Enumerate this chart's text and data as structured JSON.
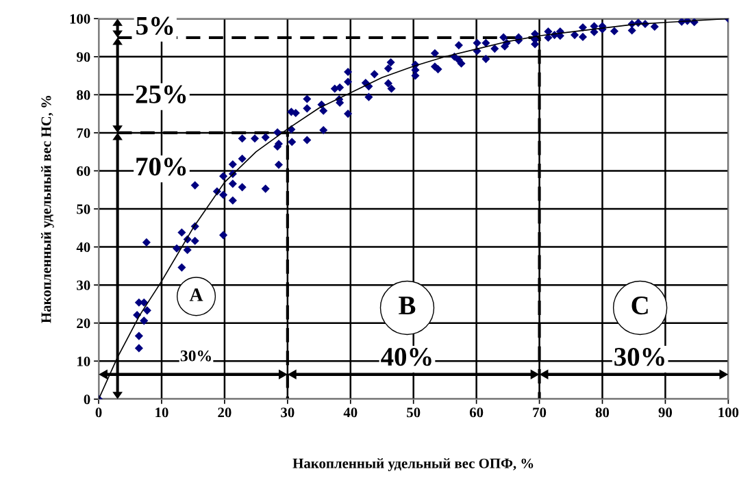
{
  "chart_data": {
    "type": "scatter",
    "xlabel": "Накопленный удельный вес ОПФ, %",
    "ylabel": "Накопленный удельный вес НС, %",
    "xlim": [
      0,
      100
    ],
    "ylim": [
      0,
      100
    ],
    "xticks": [
      0,
      10,
      20,
      30,
      40,
      50,
      60,
      70,
      80,
      90,
      100
    ],
    "yticks": [
      0,
      10,
      20,
      30,
      40,
      50,
      60,
      70,
      80,
      90,
      100
    ],
    "grid": true,
    "series": [
      {
        "color": "#000080",
        "marker": "diamond",
        "x": [
          0,
          6.4,
          6.4,
          6.1,
          6.4,
          7.2,
          7.7,
          7.2,
          7.6,
          13.2,
          12.4,
          14.1,
          14.1,
          13.2,
          15.3,
          15.3,
          15.3,
          19.8,
          18.8,
          19.8,
          19.8,
          21.3,
          21.3,
          21.3,
          21.3,
          22.8,
          22.8,
          22.8,
          24.8,
          26.5,
          26.5,
          28.4,
          28.6,
          28.4,
          28.6,
          30.6,
          31.3,
          30.6,
          30.7,
          33.1,
          33.1,
          33.1,
          35.4,
          35.7,
          35.7,
          37.5,
          38.3,
          38.3,
          38.2,
          39.6,
          39.6,
          39.6,
          42.4,
          42.9,
          42.9,
          43.8,
          46.0,
          46.4,
          46.0,
          46.5,
          50.3,
          50.3,
          50.3,
          53.4,
          53.9,
          53.4,
          57.2,
          57.2,
          57.6,
          56.5,
          60.1,
          60.1,
          61.5,
          61.5,
          62.9,
          64.3,
          64.5,
          64.8,
          66.7,
          66.7,
          69.3,
          69.3,
          69.3,
          71.4,
          71.4,
          72.4,
          73.3,
          73.3,
          75.6,
          76.9,
          76.9,
          78.7,
          78.7,
          80.0,
          80.0,
          81.9,
          84.7,
          84.7,
          85.7,
          86.8,
          88.3,
          92.6,
          93.5,
          94.6,
          100
        ],
        "values": [
          0,
          13.4,
          16.6,
          22.1,
          25.4,
          25.4,
          23.3,
          20.6,
          41.2,
          34.6,
          39.6,
          39.2,
          42.0,
          43.8,
          41.6,
          45.4,
          56.2,
          43.1,
          54.6,
          53.7,
          58.6,
          52.2,
          59.2,
          61.7,
          56.6,
          55.7,
          63.2,
          68.5,
          68.5,
          68.8,
          55.3,
          70.1,
          67.1,
          66.4,
          61.6,
          75.5,
          75.2,
          70.9,
          67.6,
          78.9,
          76.4,
          68.1,
          77.4,
          75.8,
          70.7,
          81.6,
          81.9,
          77.9,
          78.8,
          86.0,
          83.4,
          75.0,
          83.1,
          82.2,
          79.4,
          85.4,
          86.9,
          88.5,
          83.0,
          81.6,
          87.9,
          85.0,
          86.5,
          90.9,
          86.7,
          87.4,
          93.0,
          89.1,
          88.2,
          90.0,
          93.6,
          91.5,
          93.6,
          89.4,
          92.1,
          95.1,
          92.7,
          93.6,
          95.1,
          94.3,
          96.0,
          93.3,
          94.5,
          96.6,
          95.0,
          95.7,
          96.6,
          95.5,
          95.7,
          97.7,
          95.2,
          98.0,
          96.5,
          98.0,
          97.2,
          96.7,
          98.6,
          96.9,
          98.9,
          98.6,
          97.9,
          99.2,
          99.4,
          99.1,
          100
        ]
      },
      {
        "type": "line",
        "color": "#000000",
        "line_style": "solid",
        "x": [
          0,
          3,
          6.5,
          10,
          15,
          20,
          25,
          30,
          35,
          40,
          45,
          50,
          55,
          60,
          65,
          70,
          75,
          80,
          85,
          90,
          95,
          100
        ],
        "values": [
          0,
          11,
          22,
          31,
          45,
          57,
          65,
          71,
          76.5,
          80.5,
          84.5,
          87.5,
          90,
          92,
          94,
          95.5,
          96.5,
          97.5,
          98.5,
          99,
          99.5,
          100
        ]
      },
      {
        "type": "line",
        "color": "#000000",
        "line_style": "dashed",
        "x": [
          3,
          30,
          30
        ],
        "values": [
          70,
          70,
          0
        ]
      },
      {
        "type": "line",
        "color": "#000000",
        "line_style": "dashed",
        "x": [
          3,
          70,
          70
        ],
        "values": [
          95,
          95,
          0
        ]
      }
    ],
    "annotations": [
      "5%",
      "25%",
      "70%",
      "A",
      "B",
      "C",
      "30%",
      "40%",
      "30%"
    ]
  }
}
